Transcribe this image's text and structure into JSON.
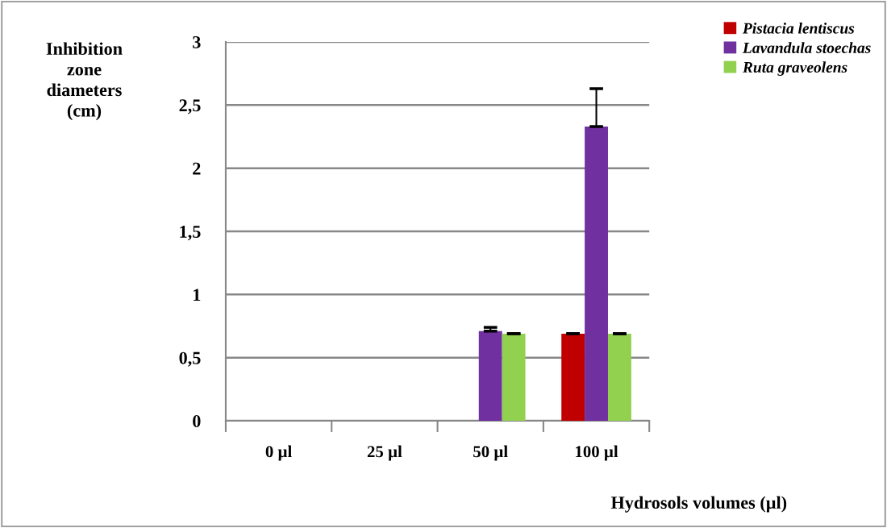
{
  "chart_data": {
    "type": "bar",
    "xlabel": "Hydrosols volumes (µl)",
    "ylabel": "Inhibition\nzone\ndiameters\n(cm)",
    "categories": [
      "0 µl",
      "25 µl",
      "50 µl",
      "100 µl"
    ],
    "series": [
      {
        "name": "Pistacia lentiscus",
        "color": "#c00000",
        "values": [
          0,
          0,
          0,
          0.69
        ],
        "errors": [
          null,
          null,
          null,
          0
        ]
      },
      {
        "name": "Lavandula stoechas",
        "color": "#7030a0",
        "values": [
          0,
          0,
          0.71,
          2.33
        ],
        "errors": [
          null,
          null,
          0.03,
          0.3
        ]
      },
      {
        "name": "Ruta graveolens",
        "color": "#92d050",
        "values": [
          0,
          0,
          0.69,
          0.69
        ],
        "errors": [
          null,
          null,
          0,
          0
        ]
      }
    ],
    "ylim": [
      0,
      3
    ],
    "yticks": [
      0,
      {
        "value": 0.5,
        "label": "0,5"
      },
      1,
      {
        "value": 1.5,
        "label": "1,5"
      },
      2,
      {
        "value": 2.5,
        "label": "2,5"
      },
      3
    ],
    "grid": "y",
    "legend": "top right"
  }
}
